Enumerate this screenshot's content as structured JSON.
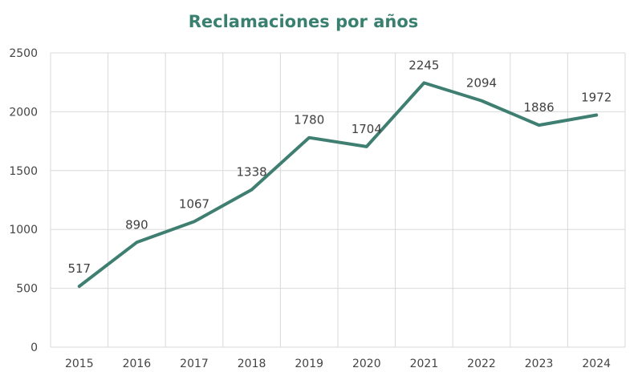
{
  "chart_data": {
    "type": "line",
    "title": "Reclamaciones por años",
    "categories": [
      "2015",
      "2016",
      "2017",
      "2018",
      "2019",
      "2020",
      "2021",
      "2022",
      "2023",
      "2024"
    ],
    "series": [
      {
        "values": [
          517,
          890,
          1067,
          1338,
          1780,
          1704,
          2245,
          2094,
          1886,
          1972
        ]
      }
    ],
    "yticks": [
      0,
      500,
      1000,
      1500,
      2000,
      2500
    ],
    "ylim": [
      0,
      2500
    ],
    "xlabel": "",
    "ylabel": "",
    "grid": true,
    "legend": "none",
    "data_labels": true,
    "colors": {
      "line": "#3f7f71",
      "title": "#3a8070",
      "grid": "#d9d9d9",
      "text": "#404040"
    }
  }
}
